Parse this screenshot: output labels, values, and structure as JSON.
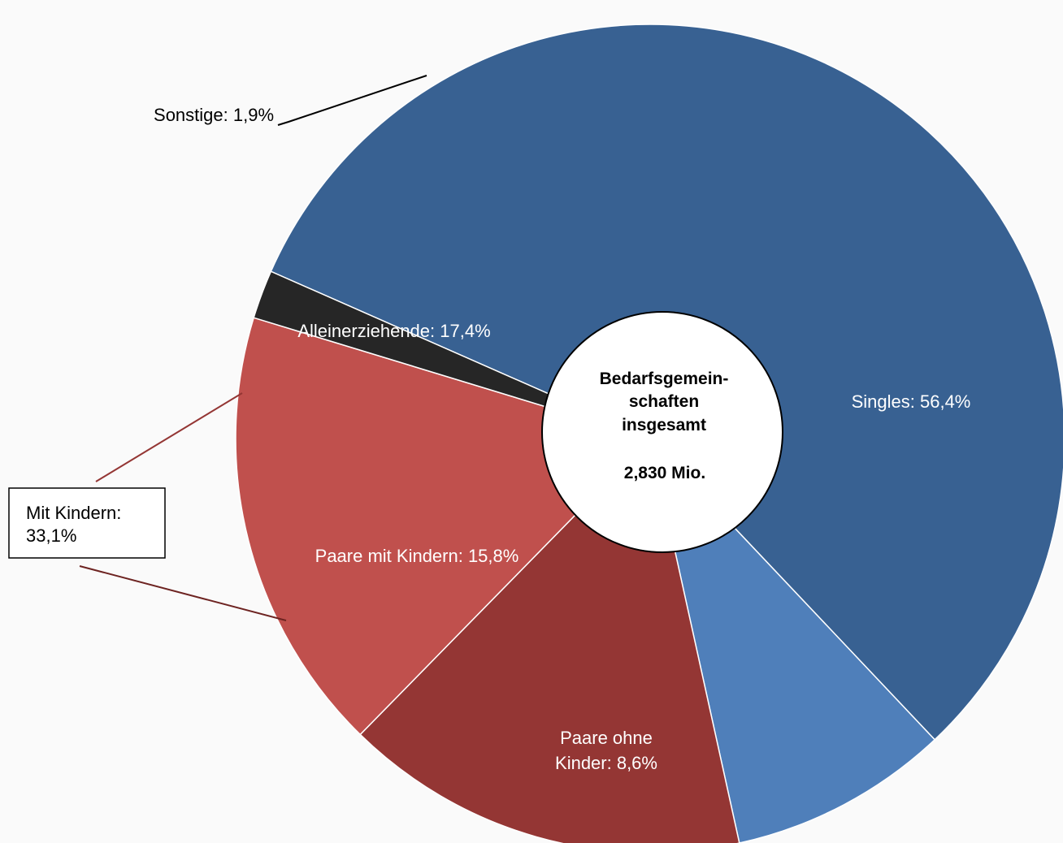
{
  "chart_data": {
    "type": "pie",
    "categories": [
      "Singles",
      "Paare ohne Kinder",
      "Paare mit Kindern",
      "Alleinerziehende",
      "Sonstige"
    ],
    "values": [
      56.4,
      8.6,
      15.8,
      17.4,
      1.9
    ],
    "unit": "%",
    "labels": {
      "singles": "Singles: 56,4%",
      "paare_ohne_kinder_line1": "Paare ohne",
      "paare_ohne_kinder_line2": "Kinder: 8,6%",
      "paare_mit_kindern": "Paare mit Kindern: 15,8%",
      "alleinerziehende": "Alleinerziehende: 17,4%",
      "sonstige": "Sonstige: 1,9%"
    },
    "center": {
      "line1": "Bedarfsgemein-",
      "line2": "schaften",
      "line3": "insgesamt",
      "total": "2,830 Mio."
    },
    "group_callout": {
      "line1": "Mit Kindern:",
      "line2": "33,1%",
      "value": 33.1
    },
    "colors": {
      "singles": "#386192",
      "paare_ohne_kinder": "#4f7fba",
      "paare_mit_kindern": "#943634",
      "alleinerziehende": "#c0504d",
      "sonstige": "#262626",
      "background": "#fafafa"
    }
  }
}
